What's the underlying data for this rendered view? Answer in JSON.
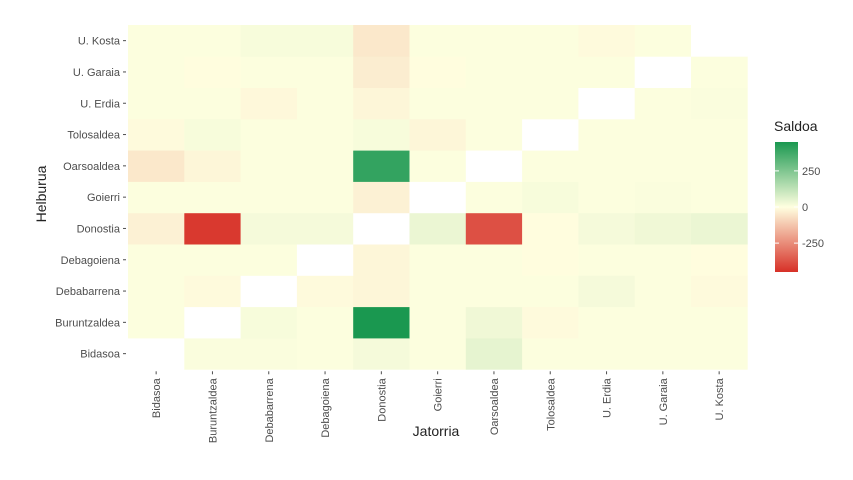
{
  "chart_data": {
    "type": "heatmap",
    "xlabel": "Jatorria",
    "ylabel": "Helburua",
    "x_categories": [
      "Bidasoa",
      "Buruntzaldea",
      "Debabarrena",
      "Debagoiena",
      "Donostia",
      "Goierri",
      "Oarsoaldea",
      "Tolosaldea",
      "U. Erdia",
      "U. Garaia",
      "U. Kosta"
    ],
    "y_categories": [
      "Bidasoa",
      "Buruntzaldea",
      "Debabarrena",
      "Debagoiena",
      "Donostia",
      "Goierri",
      "Oarsoaldea",
      "Tolosaldea",
      "U. Erdia",
      "U. Garaia",
      "U. Kosta"
    ],
    "values": [
      [
        null,
        10,
        10,
        5,
        20,
        5,
        50,
        5,
        5,
        5,
        5
      ],
      [
        5,
        null,
        15,
        5,
        450,
        5,
        30,
        -10,
        5,
        5,
        5
      ],
      [
        5,
        -10,
        null,
        -10,
        -20,
        5,
        5,
        5,
        20,
        5,
        -10
      ],
      [
        5,
        5,
        5,
        null,
        -20,
        5,
        5,
        -5,
        5,
        5,
        -5
      ],
      [
        -30,
        -430,
        20,
        20,
        null,
        40,
        -380,
        -5,
        20,
        30,
        40
      ],
      [
        5,
        5,
        5,
        5,
        -30,
        null,
        5,
        15,
        5,
        10,
        5
      ],
      [
        -50,
        -20,
        5,
        5,
        400,
        5,
        null,
        5,
        5,
        5,
        5
      ],
      [
        -10,
        15,
        5,
        5,
        15,
        -20,
        5,
        null,
        5,
        5,
        5
      ],
      [
        5,
        5,
        -15,
        5,
        -20,
        5,
        5,
        5,
        null,
        5,
        10
      ],
      [
        5,
        -5,
        5,
        5,
        -40,
        -5,
        5,
        5,
        5,
        null,
        5
      ],
      [
        5,
        5,
        15,
        15,
        -50,
        5,
        5,
        5,
        -10,
        5,
        null
      ]
    ],
    "legend": {
      "title": "Saldoa",
      "ticks": [
        250,
        0,
        -250
      ],
      "tick_labels": [
        "250",
        "0",
        "-250"
      ],
      "range": [
        -450,
        450
      ],
      "colors": {
        "low": "#d73027",
        "mid": "#ffffe0",
        "high": "#1a9850"
      }
    },
    "background": "#ffffff"
  }
}
